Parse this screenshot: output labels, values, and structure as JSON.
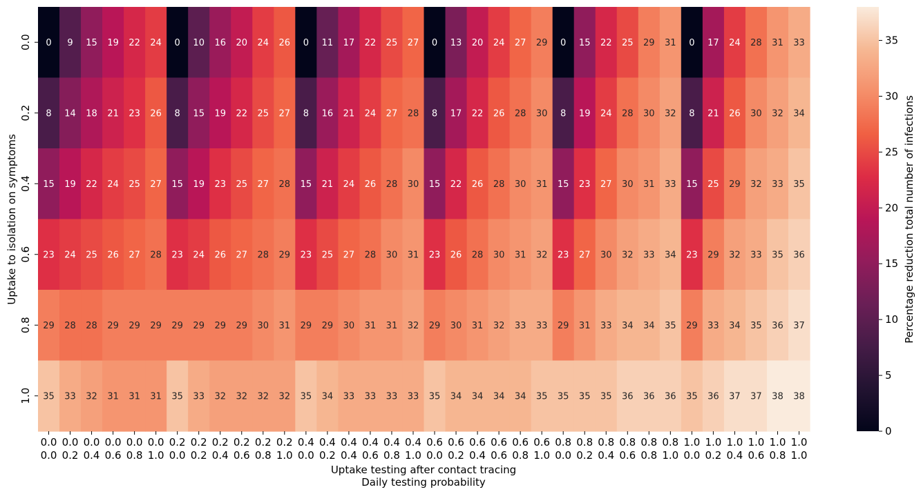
{
  "chart_data": {
    "type": "heatmap",
    "xlabel": "Uptake testing after contact tracing",
    "xlabel2": "Daily testing probability",
    "ylabel": "Uptake to isolation on symptoms",
    "colorbar_label": "Percentage reduction total number of infections",
    "colorbar_ticks": [
      "0",
      "5",
      "10",
      "15",
      "20",
      "25",
      "30",
      "35"
    ],
    "vmin": 0,
    "vmax": 38,
    "y_categories": [
      "0.0",
      "0.2",
      "0.4",
      "0.6",
      "0.8",
      "1.0"
    ],
    "x_categories_top": [
      "0.0",
      "0.0",
      "0.0",
      "0.0",
      "0.0",
      "0.0",
      "0.2",
      "0.2",
      "0.2",
      "0.2",
      "0.2",
      "0.2",
      "0.4",
      "0.4",
      "0.4",
      "0.4",
      "0.4",
      "0.4",
      "0.6",
      "0.6",
      "0.6",
      "0.6",
      "0.6",
      "0.6",
      "0.8",
      "0.8",
      "0.8",
      "0.8",
      "0.8",
      "0.8",
      "1.0",
      "1.0",
      "1.0",
      "1.0",
      "1.0",
      "1.0"
    ],
    "x_categories_bottom": [
      "0.0",
      "0.2",
      "0.4",
      "0.6",
      "0.8",
      "1.0",
      "0.0",
      "0.2",
      "0.4",
      "0.6",
      "0.8",
      "1.0",
      "0.0",
      "0.2",
      "0.4",
      "0.6",
      "0.8",
      "1.0",
      "0.0",
      "0.2",
      "0.4",
      "0.6",
      "0.8",
      "1.0",
      "0.0",
      "0.2",
      "0.4",
      "0.6",
      "0.8",
      "1.0",
      "0.0",
      "0.2",
      "0.4",
      "0.6",
      "0.8",
      "1.0"
    ],
    "values": [
      [
        0,
        9,
        15,
        19,
        22,
        24,
        0,
        10,
        16,
        20,
        24,
        26,
        0,
        11,
        17,
        22,
        25,
        27,
        0,
        13,
        20,
        24,
        27,
        29,
        0,
        15,
        22,
        25,
        29,
        31,
        0,
        17,
        24,
        28,
        31,
        33
      ],
      [
        8,
        14,
        18,
        21,
        23,
        26,
        8,
        15,
        19,
        22,
        25,
        27,
        8,
        16,
        21,
        24,
        27,
        28,
        8,
        17,
        22,
        26,
        28,
        30,
        8,
        19,
        24,
        28,
        30,
        32,
        8,
        21,
        26,
        30,
        32,
        34
      ],
      [
        15,
        19,
        22,
        24,
        25,
        27,
        15,
        19,
        23,
        25,
        27,
        28,
        15,
        21,
        24,
        26,
        28,
        30,
        15,
        22,
        26,
        28,
        30,
        31,
        15,
        23,
        27,
        30,
        31,
        33,
        15,
        25,
        29,
        32,
        33,
        35
      ],
      [
        23,
        24,
        25,
        26,
        27,
        28,
        23,
        24,
        26,
        27,
        28,
        29,
        23,
        25,
        27,
        28,
        30,
        31,
        23,
        26,
        28,
        30,
        31,
        32,
        23,
        27,
        30,
        32,
        33,
        34,
        23,
        29,
        32,
        33,
        35,
        36
      ],
      [
        29,
        28,
        28,
        29,
        29,
        29,
        29,
        29,
        29,
        29,
        30,
        31,
        29,
        29,
        30,
        31,
        31,
        32,
        29,
        30,
        31,
        32,
        33,
        33,
        29,
        31,
        33,
        34,
        34,
        35,
        29,
        33,
        34,
        35,
        36,
        37
      ],
      [
        35,
        33,
        32,
        31,
        31,
        31,
        35,
        33,
        32,
        32,
        32,
        32,
        35,
        34,
        33,
        33,
        33,
        33,
        35,
        34,
        34,
        34,
        34,
        35,
        35,
        35,
        35,
        36,
        36,
        36,
        35,
        36,
        37,
        37,
        38,
        38
      ]
    ]
  }
}
